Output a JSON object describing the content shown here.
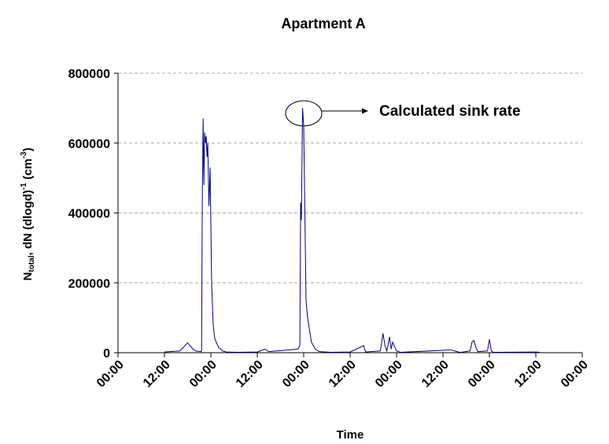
{
  "chart_data": {
    "type": "line",
    "title": "Apartment A",
    "xlabel": "Time",
    "ylabel": [
      "N",
      "total",
      ", dN (dlogd)",
      "-1",
      " (cm",
      "-3",
      ")"
    ],
    "annotation": "Calculated sink rate",
    "xlim": [
      0,
      120
    ],
    "xticks": [
      {
        "value": 0,
        "label": "00:00"
      },
      {
        "value": 12,
        "label": "12:00"
      },
      {
        "value": 24,
        "label": "00:00"
      },
      {
        "value": 36,
        "label": "12:00"
      },
      {
        "value": 48,
        "label": "00:00"
      },
      {
        "value": 60,
        "label": "12:00"
      },
      {
        "value": 72,
        "label": "00:00"
      },
      {
        "value": 84,
        "label": "12:00"
      },
      {
        "value": 96,
        "label": "00:00"
      },
      {
        "value": 108,
        "label": "12:00"
      },
      {
        "value": 120,
        "label": "00:00"
      }
    ],
    "ylim": [
      0,
      800000
    ],
    "yticks": [
      0,
      200000,
      400000,
      600000,
      800000
    ],
    "grid": true,
    "x": [
      12,
      16,
      18,
      19,
      20,
      21.5,
      21.6,
      21.8,
      22.0,
      22.2,
      22.4,
      22.6,
      22.8,
      23.0,
      23.2,
      23.5,
      23.8,
      24.2,
      24.6,
      25,
      26,
      27,
      28,
      31,
      36,
      38,
      39,
      46.5,
      47,
      47.2,
      47.4,
      47.7,
      48,
      48.3,
      48.6,
      49,
      50,
      51,
      52,
      55,
      60,
      63.5,
      64,
      67.8,
      68.5,
      69,
      69.5,
      70.2,
      70.6,
      71,
      72,
      73,
      86,
      88,
      88.5,
      91,
      91.5,
      92,
      92.5,
      93,
      95.5,
      96,
      96.5,
      97,
      108,
      109
    ],
    "series": [
      {
        "name": "Apartment A",
        "color": "#000080",
        "values": [
          2000,
          5000,
          28000,
          15000,
          5000,
          3000,
          5000,
          460000,
          670000,
          480000,
          630000,
          600000,
          620000,
          560000,
          600000,
          420000,
          530000,
          200000,
          80000,
          40000,
          15000,
          5000,
          2000,
          1000,
          2000,
          10000,
          3000,
          10000,
          20000,
          430000,
          380000,
          700000,
          650000,
          400000,
          150000,
          100000,
          30000,
          10000,
          3000,
          1000,
          2000,
          20000,
          2000,
          5000,
          55000,
          20000,
          5000,
          45000,
          10000,
          30000,
          5000,
          1000,
          8000,
          2000,
          1000,
          5000,
          30000,
          35000,
          15000,
          3000,
          5000,
          38000,
          5000,
          1000,
          2000,
          1000
        ]
      }
    ]
  }
}
